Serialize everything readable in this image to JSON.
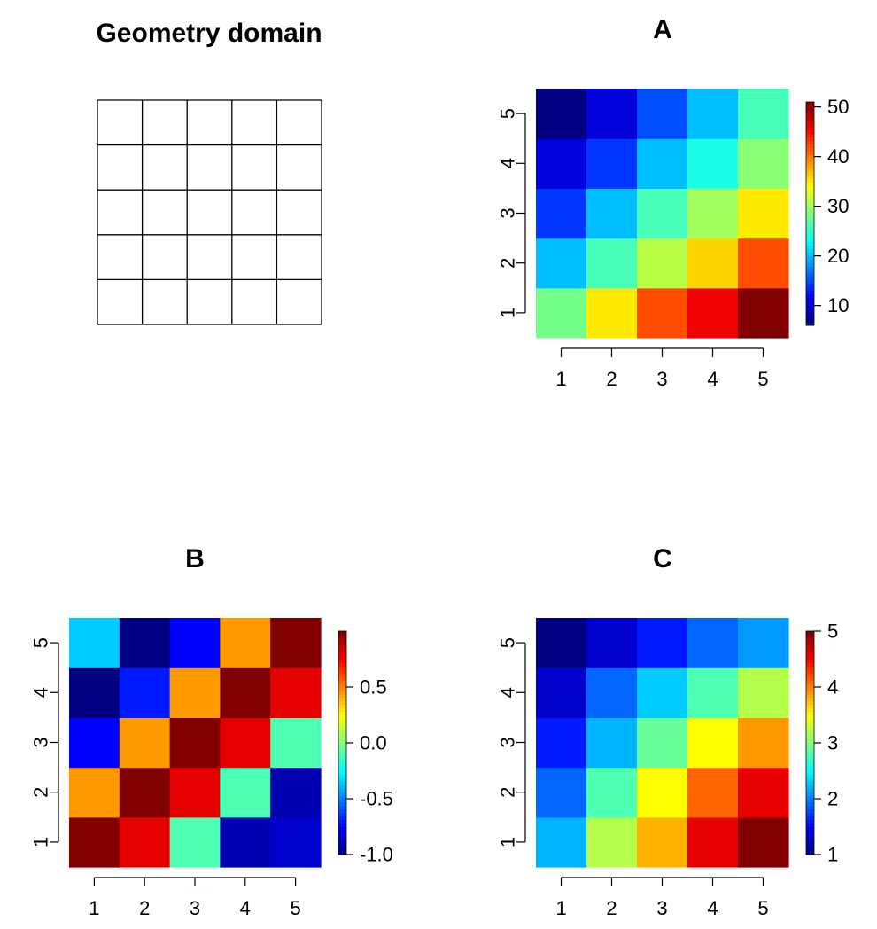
{
  "chart_data": [
    {
      "type": "grid",
      "title": "Geometry domain",
      "rows": 5,
      "cols": 5
    },
    {
      "type": "heatmap",
      "title": "A",
      "x": [
        1,
        2,
        3,
        4,
        5
      ],
      "y": [
        1,
        2,
        3,
        4,
        5
      ],
      "values": [
        [
          28,
          35,
          42,
          46,
          51
        ],
        [
          20,
          26,
          31,
          36,
          42
        ],
        [
          14,
          20,
          26,
          30,
          35
        ],
        [
          10,
          14,
          20,
          24,
          29
        ],
        [
          6,
          10,
          15,
          20,
          26
        ]
      ],
      "xlabels": [
        "1",
        "2",
        "3",
        "4",
        "5"
      ],
      "ylabels": [
        "1",
        "2",
        "3",
        "4",
        "5"
      ],
      "zlim": [
        6,
        51
      ],
      "legend_ticks": [
        10,
        20,
        30,
        40,
        50
      ],
      "legend_labels": [
        "10",
        "20",
        "30",
        "40",
        "50"
      ]
    },
    {
      "type": "heatmap",
      "title": "B",
      "x": [
        1,
        2,
        3,
        4,
        5
      ],
      "y": [
        1,
        2,
        3,
        4,
        5
      ],
      "values": [
        [
          1.0,
          0.8,
          -0.1,
          -0.9,
          -0.85
        ],
        [
          0.45,
          1.0,
          0.8,
          -0.1,
          -0.9
        ],
        [
          -0.75,
          0.45,
          1.0,
          0.8,
          -0.1
        ],
        [
          -1.0,
          -0.7,
          0.45,
          1.0,
          0.8
        ],
        [
          -0.35,
          -1.0,
          -0.75,
          0.45,
          1.0
        ]
      ],
      "xlabels": [
        "1",
        "2",
        "3",
        "4",
        "5"
      ],
      "ylabels": [
        "1",
        "2",
        "3",
        "4",
        "5"
      ],
      "zlim": [
        -1.0,
        1.0
      ],
      "legend_ticks": [
        -1.0,
        -0.5,
        0.0,
        0.5
      ],
      "legend_labels": [
        "-1.0",
        "-0.5",
        "0.0",
        "0.5"
      ]
    },
    {
      "type": "heatmap",
      "title": "C",
      "x": [
        1,
        2,
        3,
        4,
        5
      ],
      "y": [
        1,
        2,
        3,
        4,
        5
      ],
      "values": [
        [
          2.2,
          3.2,
          3.8,
          4.6,
          5.0
        ],
        [
          1.9,
          2.8,
          3.5,
          4.1,
          4.6
        ],
        [
          1.6,
          2.2,
          2.9,
          3.5,
          3.9
        ],
        [
          1.3,
          1.9,
          2.3,
          2.8,
          3.2
        ],
        [
          1.0,
          1.3,
          1.6,
          1.9,
          2.1
        ]
      ],
      "xlabels": [
        "1",
        "2",
        "3",
        "4",
        "5"
      ],
      "ylabels": [
        "1",
        "2",
        "3",
        "4",
        "5"
      ],
      "zlim": [
        1,
        5
      ],
      "legend_ticks": [
        1,
        2,
        3,
        4,
        5
      ],
      "legend_labels": [
        "1",
        "2",
        "3",
        "4",
        "5"
      ]
    }
  ]
}
